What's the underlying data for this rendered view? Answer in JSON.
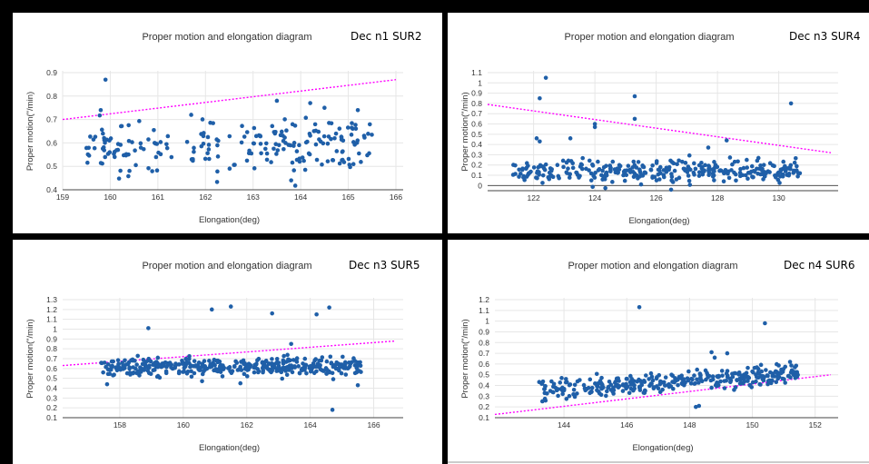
{
  "colors": {
    "background": "#000000",
    "panel": "#ffffff",
    "points": "#1f5fa8",
    "trend_line": "#ff00ff",
    "grid": "#e6e6e6"
  },
  "chart_data": [
    {
      "type": "scatter",
      "title": "Proper motion and elongation diagram",
      "tag": "Dec n1 SUR2",
      "xlabel": "Elongation(deg)",
      "ylabel": "Proper motion(\"/min)",
      "xlim": [
        159,
        166
      ],
      "ylim": [
        0.4,
        0.9
      ],
      "xticks": [
        159,
        160,
        161,
        162,
        163,
        164,
        165,
        166
      ],
      "xtick_labels": [
        "159",
        "160",
        "161",
        "162",
        "163",
        "164",
        "165",
        "166"
      ],
      "yticks": [
        0.4,
        0.5,
        0.6,
        0.7,
        0.8,
        0.9
      ],
      "ytick_labels": [
        "0.4",
        "0.5",
        "0.6",
        "0.7",
        "0.8",
        "0.9"
      ],
      "grid": true,
      "trend_line": {
        "x": [
          159,
          166
        ],
        "y": [
          0.7,
          0.87
        ]
      },
      "cluster": {
        "x_range": [
          159.5,
          165.5
        ],
        "y_center": 0.59,
        "y_spread": 0.07,
        "n": 220,
        "gaps": [
          [
            161.3,
            161.6
          ],
          [
            162.3,
            162.5
          ]
        ]
      },
      "outliers": [
        [
          159.9,
          0.87
        ],
        [
          159.8,
          0.74
        ],
        [
          163.5,
          0.78
        ],
        [
          164.2,
          0.77
        ],
        [
          163.8,
          0.44
        ],
        [
          164.5,
          0.75
        ],
        [
          161.7,
          0.72
        ],
        [
          165.2,
          0.74
        ]
      ]
    },
    {
      "type": "scatter",
      "title": "Proper motion and elongation diagram",
      "tag": "Dec n3 SUR4",
      "xlabel": "Elongation(deg)",
      "ylabel": "Proper motion(\"/min)",
      "xlim": [
        120.5,
        131.7
      ],
      "ylim": [
        -0.05,
        1.1
      ],
      "xticks": [
        122,
        124,
        126,
        128,
        130
      ],
      "xtick_labels": [
        "122",
        "124",
        "126",
        "128",
        "130"
      ],
      "yticks": [
        0,
        0.1,
        0.2,
        0.3,
        0.4,
        0.5,
        0.6,
        0.7,
        0.8,
        0.9,
        1,
        1.1
      ],
      "ytick_labels": [
        "0",
        "0.1",
        "0.2",
        "0.3",
        "0.4",
        "0.5",
        "0.6",
        "0.7",
        "0.8",
        "0.9",
        "1",
        "1.1"
      ],
      "grid": true,
      "trend_line": {
        "x": [
          120.5,
          131.7
        ],
        "y": [
          0.79,
          0.32
        ]
      },
      "cluster": {
        "x_range": [
          121.3,
          130.7
        ],
        "y_center": 0.14,
        "y_spread": 0.08,
        "n": 330,
        "gaps": []
      },
      "outliers": [
        [
          122.4,
          1.05
        ],
        [
          122.2,
          0.85
        ],
        [
          125.3,
          0.87
        ],
        [
          125.3,
          0.65
        ],
        [
          124.0,
          0.6
        ],
        [
          124.0,
          0.57
        ],
        [
          130.4,
          0.8
        ],
        [
          128.3,
          0.44
        ],
        [
          122.1,
          0.46
        ],
        [
          122.2,
          0.43
        ],
        [
          123.2,
          0.46
        ],
        [
          127.7,
          0.37
        ]
      ]
    },
    {
      "type": "scatter",
      "title": "Proper motion and elongation diagram",
      "tag": "Dec n3 SUR5",
      "xlabel": "Elongation(deg)",
      "ylabel": "Proper motion(\"/min)",
      "xlim": [
        156.2,
        166.7
      ],
      "ylim": [
        0.1,
        1.3
      ],
      "xticks": [
        158,
        160,
        162,
        164,
        166
      ],
      "xtick_labels": [
        "158",
        "160",
        "162",
        "164",
        "166"
      ],
      "yticks": [
        0.1,
        0.2,
        0.3,
        0.4,
        0.5,
        0.6,
        0.7,
        0.8,
        0.9,
        1,
        1.1,
        1.2,
        1.3
      ],
      "ytick_labels": [
        "0.1",
        "0.2",
        "0.3",
        "0.4",
        "0.5",
        "0.6",
        "0.7",
        "0.8",
        "0.9",
        "1",
        "1.1",
        "1.2",
        "1.3"
      ],
      "grid": true,
      "trend_line": {
        "x": [
          156.2,
          166.7
        ],
        "y": [
          0.63,
          0.88
        ]
      },
      "cluster": {
        "x_range": [
          157.4,
          165.6
        ],
        "y_center": 0.62,
        "y_spread": 0.06,
        "n": 420,
        "gaps": []
      },
      "outliers": [
        [
          160.9,
          1.2
        ],
        [
          161.5,
          1.23
        ],
        [
          162.8,
          1.16
        ],
        [
          164.2,
          1.15
        ],
        [
          164.6,
          1.22
        ],
        [
          158.9,
          1.01
        ],
        [
          164.7,
          0.18
        ],
        [
          157.6,
          0.44
        ],
        [
          165.5,
          0.43
        ],
        [
          163.4,
          0.85
        ],
        [
          161.8,
          0.45
        ]
      ]
    },
    {
      "type": "scatter",
      "title": "Proper motion and elongation diagram",
      "tag": "Dec n4 SUR6",
      "xlabel": "Elongation(deg)",
      "ylabel": "Proper motion(\"/min)",
      "xlim": [
        141.8,
        152.5
      ],
      "ylim": [
        0.1,
        1.2
      ],
      "xticks": [
        144,
        146,
        148,
        150,
        152
      ],
      "xtick_labels": [
        "144",
        "146",
        "148",
        "150",
        "152"
      ],
      "yticks": [
        0.1,
        0.2,
        0.3,
        0.4,
        0.5,
        0.6,
        0.7,
        0.8,
        0.9,
        1,
        1.1,
        1.2
      ],
      "ytick_labels": [
        "0.1",
        "0.2",
        "0.3",
        "0.4",
        "0.5",
        "0.6",
        "0.7",
        "0.8",
        "0.9",
        "1",
        "1.1",
        "1.2"
      ],
      "grid": true,
      "trend_line": {
        "x": [
          141.8,
          152.5
        ],
        "y": [
          0.13,
          0.5
        ]
      },
      "cluster": {
        "x_range": [
          143.2,
          151.5
        ],
        "y_center": 0.43,
        "y_spread": 0.06,
        "n": 360,
        "gaps": [],
        "slope": 0.018
      },
      "outliers": [
        [
          146.4,
          1.13
        ],
        [
          150.4,
          0.98
        ],
        [
          148.2,
          0.2
        ],
        [
          148.3,
          0.21
        ],
        [
          148.7,
          0.71
        ],
        [
          149.2,
          0.7
        ],
        [
          148.8,
          0.66
        ],
        [
          151.2,
          0.62
        ]
      ]
    }
  ]
}
